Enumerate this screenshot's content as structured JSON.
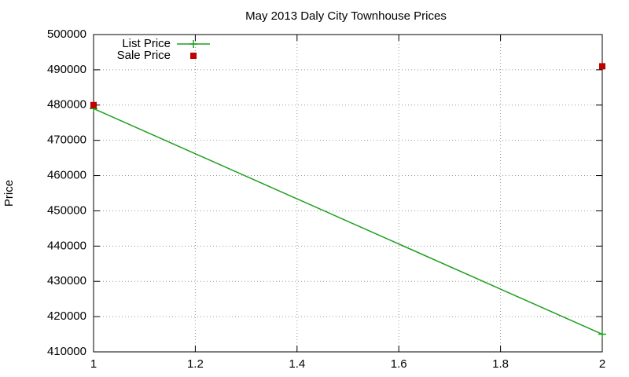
{
  "chart_data": {
    "type": "line",
    "title": "May 2013 Daly City Townhouse Prices",
    "y_label": "Price",
    "x": [
      1,
      2
    ],
    "series": [
      {
        "name": "List Price",
        "color": "#1f9e1f",
        "style": "linespoints",
        "values": [
          479000,
          415000
        ]
      },
      {
        "name": "Sale Price",
        "color": "#c00000",
        "style": "points",
        "values": [
          480000,
          491000
        ]
      }
    ],
    "xlim": [
      1,
      2
    ],
    "xticks": [
      1,
      1.2,
      1.4,
      1.6,
      1.8,
      2
    ],
    "ylim": [
      410000,
      500000
    ],
    "yticks": [
      410000,
      420000,
      430000,
      440000,
      450000,
      460000,
      470000,
      480000,
      490000,
      500000
    ],
    "grid": true,
    "legend": "top left"
  }
}
